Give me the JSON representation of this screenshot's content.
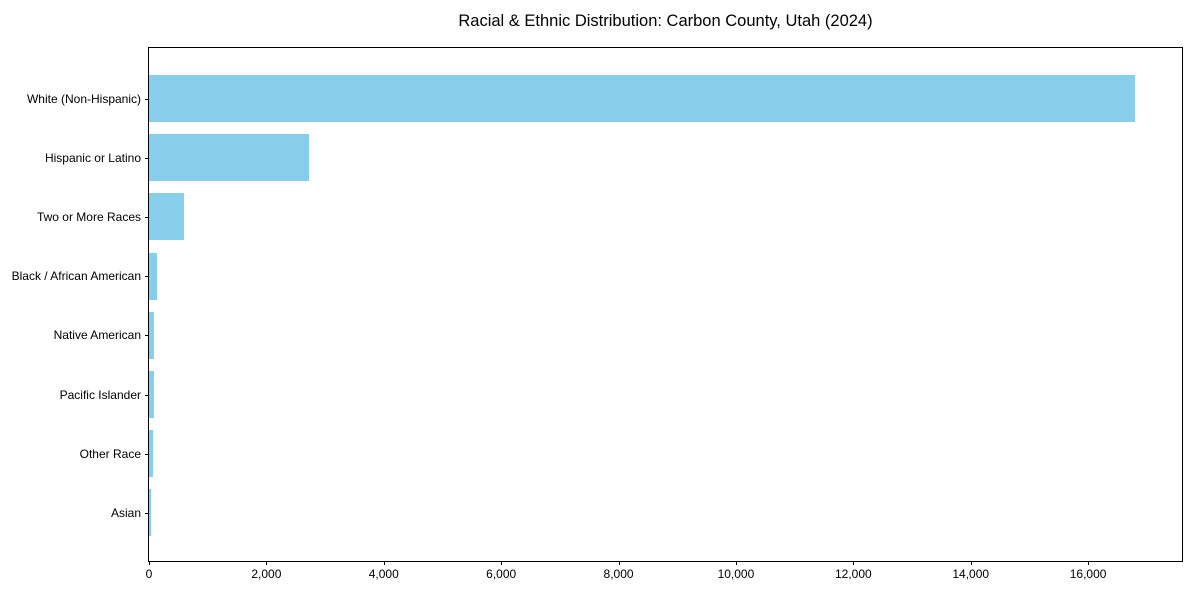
{
  "chart_data": {
    "type": "bar",
    "orientation": "horizontal",
    "title": "Racial & Ethnic Distribution: Carbon County, Utah (2024)",
    "categories": [
      "White (Non-Hispanic)",
      "Hispanic or Latino",
      "Two or More Races",
      "Black / African American",
      "Native American",
      "Pacific Islander",
      "Other Race",
      "Asian"
    ],
    "values": [
      16800,
      2720,
      600,
      130,
      90,
      85,
      60,
      40
    ],
    "xlabel": "",
    "ylabel": "",
    "xlim": [
      0,
      17600
    ],
    "x_ticks": [
      0,
      2000,
      4000,
      6000,
      8000,
      10000,
      12000,
      14000,
      16000
    ],
    "x_tick_labels": [
      "0",
      "2,000",
      "4,000",
      "6,000",
      "8,000",
      "10,000",
      "12,000",
      "14,000",
      "16,000"
    ],
    "bar_color": "#87CEEB",
    "axis_color": "#000000",
    "background_color": "#ffffff",
    "grid": false,
    "legend": null
  }
}
